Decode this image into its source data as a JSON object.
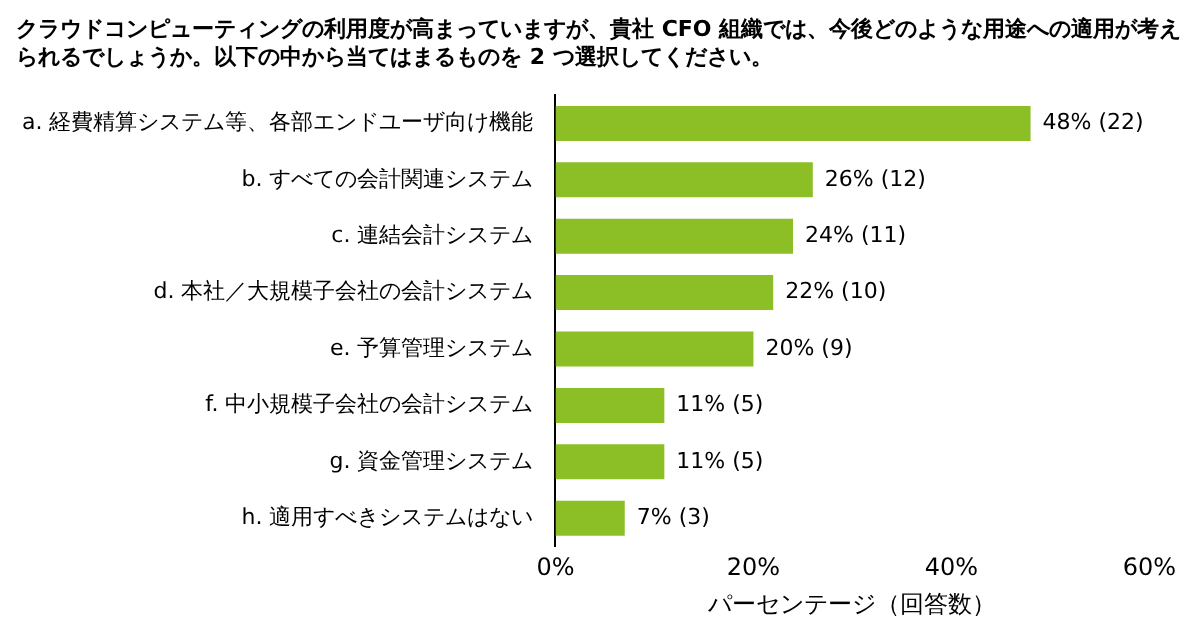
{
  "chart_data": {
    "type": "bar",
    "orientation": "horizontal",
    "title": "クラウドコンピューティングの利用度が高まっていますが、貴社 CFO 組織では、今後どのような用途への適用が考えられるでしょうか。以下の中から当てはまるものを 2 つ選択してください。",
    "categories": [
      "a. 経費精算システム等、各部エンドユーザ向け機能",
      "b. すべての会計関連システム",
      "c. 連結会計システム",
      "d. 本社／大規模子会社の会計システム",
      "e. 予算管理システム",
      "f. 中小規模子会社の会計システム",
      "g. 資金管理システム",
      "h. 適用すべきシステムはない"
    ],
    "values": [
      48,
      26,
      24,
      22,
      20,
      11,
      11,
      7
    ],
    "value_labels": [
      "48% (22)",
      "26% (12)",
      "24% (11)",
      "22% (10)",
      "20% (9)",
      "11% (5)",
      "11% (5)",
      "7% (3)"
    ],
    "color": "#8cbf26",
    "xlabel": "パーセンテージ（回答数）",
    "xlim": [
      0,
      60
    ],
    "xticks": [
      {
        "value": 0,
        "label": "0%"
      },
      {
        "value": 20,
        "label": "20%"
      },
      {
        "value": 40,
        "label": "40%"
      },
      {
        "value": 60,
        "label": "60%"
      }
    ],
    "grid": false,
    "legend": false
  }
}
